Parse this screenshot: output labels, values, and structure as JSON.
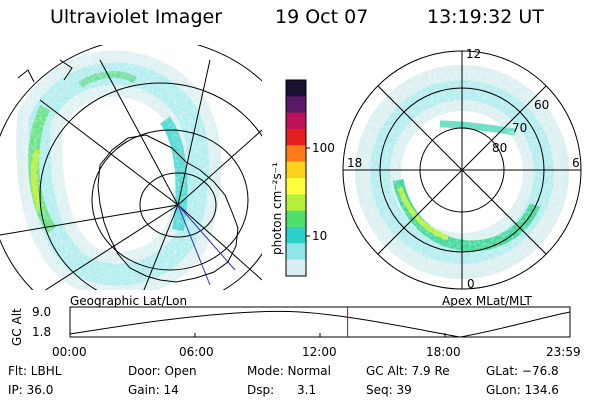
{
  "header": {
    "instrument": "Ultraviolet Imager",
    "date": "19 Oct 07",
    "time": "13:19:32 UT"
  },
  "colorbar": {
    "unit_label": "photon cm⁻²s⁻¹",
    "ticks": [
      "100",
      "10"
    ],
    "scale": "log",
    "colors": [
      "#1a1033",
      "#5a1a6a",
      "#c0115a",
      "#e61e1e",
      "#ff7a1a",
      "#ffd21a",
      "#ffff3a",
      "#b6f03a",
      "#4ee06a",
      "#28d2c8",
      "#8fe6ea",
      "#d9eef0"
    ]
  },
  "left_map": {
    "caption": "Geographic Lat/Lon"
  },
  "right_map": {
    "caption": "Apex MLat/MLT",
    "mlt_labels": {
      "top": "12",
      "left": "18",
      "right": "6",
      "bottom": "0"
    },
    "lat_labels": [
      "60",
      "70",
      "80"
    ]
  },
  "timeline": {
    "axis_label": "GC Alt",
    "y_ticks": [
      "9.0",
      "1.8"
    ],
    "x_ticks": [
      "00:00",
      "06:00",
      "12:00",
      "18:00",
      "23:59"
    ],
    "current_time_marker": "13:19:32",
    "marker_color": "#cc0000"
  },
  "status": {
    "flt": "Flt: LBHL",
    "ip": "IP: 36.0",
    "door": "Door: Open",
    "gain": "Gain: 14",
    "mode": "Mode: Normal",
    "dsp": "Dsp:      3.1",
    "gcalt": "GC Alt: 7.9 Re",
    "seq": "Seq: 39",
    "glat": "GLat: −76.8",
    "glon": "GLon: 134.6"
  }
}
